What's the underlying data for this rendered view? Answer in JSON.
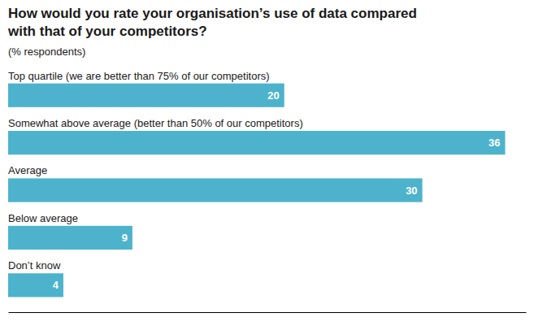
{
  "chart_data": {
    "type": "bar",
    "orientation": "horizontal",
    "title": [
      "How would you rate your organisation’s use of data compared",
      "with that of your competitors?"
    ],
    "subtitle": "(% respondents)",
    "categories": [
      "Top quartile (we are better than 75% of our competitors)",
      "Somewhat above average (better than 50% of our competitors)",
      "Average",
      "Below average",
      "Don’t know"
    ],
    "values": [
      20,
      36,
      30,
      9,
      4
    ],
    "color": "#4db3cc",
    "xlim": [
      0,
      37.5
    ],
    "tick_labels": false,
    "data_labels": true,
    "grid": false
  }
}
